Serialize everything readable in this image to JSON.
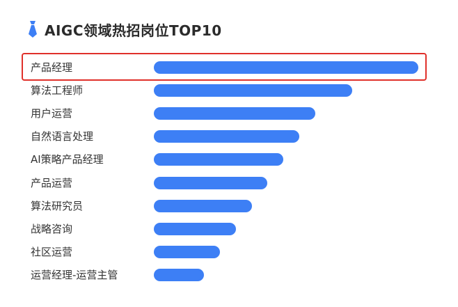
{
  "header": {
    "title": "AIGC领域热招岗位TOP10",
    "icon": "tie-icon"
  },
  "colors": {
    "bar": "#3d7ff5",
    "highlight": "#e0302a",
    "text": "#333333"
  },
  "chart_data": {
    "type": "bar",
    "orientation": "horizontal",
    "title": "AIGC领域热招岗位TOP10",
    "categories": [
      "产品经理",
      "算法工程师",
      "用户运营",
      "自然语言处理",
      "AI策略产品经理",
      "产品运营",
      "算法研究员",
      "战略咨询",
      "社区运营",
      "运营经理-运营主管"
    ],
    "values": [
      10,
      7.5,
      6.1,
      5.5,
      4.9,
      4.3,
      3.7,
      3.1,
      2.5,
      1.9
    ],
    "xlim": [
      0,
      10
    ],
    "grid": false,
    "legend": "none",
    "highlighted_category": "产品经理"
  }
}
